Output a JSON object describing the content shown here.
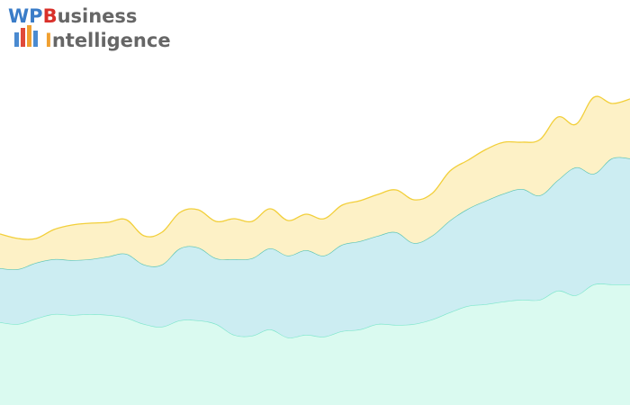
{
  "logo": {
    "line1": [
      "WP",
      "B",
      "usiness"
    ],
    "line2": [
      "I",
      "ntelligence"
    ]
  },
  "chart_data": {
    "type": "area",
    "stacked": true,
    "ylim": [
      0,
      450
    ],
    "series": [
      {
        "color": "#7ee6cc",
        "fill": "#dafaf0",
        "values": [
          92,
          90,
          96,
          101,
          100,
          101,
          100,
          97,
          90,
          87,
          94,
          94,
          90,
          78,
          77,
          84,
          75,
          78,
          76,
          82,
          84,
          90,
          89,
          90,
          95,
          103,
          110,
          112,
          115,
          117,
          117,
          127,
          122,
          134,
          134,
          134
        ]
      },
      {
        "color": "#5cc4b4",
        "fill": "#ccedf2",
        "values": [
          60,
          61,
          62,
          61,
          61,
          61,
          65,
          71,
          66,
          69,
          80,
          81,
          73,
          84,
          86,
          90,
          91,
          94,
          90,
          96,
          98,
          98,
          103,
          90,
          93,
          102,
          108,
          115,
          120,
          123,
          116,
          123,
          142,
          123,
          140,
          140
        ]
      },
      {
        "color": "#f2cf3a",
        "fill": "#fdf1c6",
        "values": [
          38,
          34,
          27,
          33,
          39,
          40,
          38,
          38,
          32,
          36,
          40,
          42,
          41,
          45,
          41,
          44,
          39,
          40,
          41,
          44,
          45,
          46,
          47,
          48,
          47,
          55,
          54,
          57,
          57,
          52,
          62,
          70,
          48,
          85,
          61,
          66
        ]
      }
    ]
  }
}
